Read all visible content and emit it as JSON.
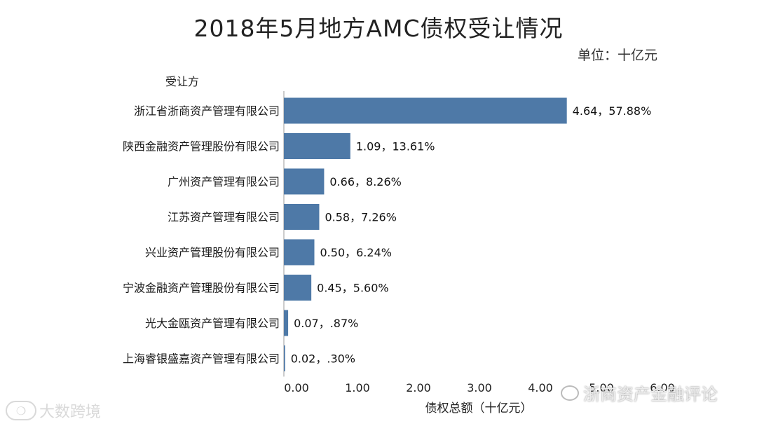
{
  "title": "2018年5月地方AMC债权受让情况",
  "unit_label": "单位：十亿元",
  "watermarks": {
    "left": "大数跨境",
    "right": "浙商资产金融评论"
  },
  "chart_data": {
    "type": "bar",
    "orientation": "horizontal",
    "title": "2018年5月地方AMC债权受让情况",
    "ylabel": "受让方",
    "xlabel": "债权总额（十亿元）",
    "categories": [
      "浙江省浙商资产管理有限公司",
      "陕西金融资产管理股份有限公司",
      "广州资产管理有限公司",
      "江苏资产管理有限公司",
      "兴业资产管理股份有限公司",
      "宁波金融资产管理股份有限公司",
      "光大金瓯资产管理有限公司",
      "上海睿银盛嘉资产管理有限公司"
    ],
    "values": [
      4.64,
      1.09,
      0.66,
      0.58,
      0.5,
      0.45,
      0.07,
      0.02
    ],
    "data_labels": [
      "4.64，57.88%",
      "1.09，13.61%",
      "0.66，8.26%",
      "0.58，7.26%",
      "0.50，6.24%",
      "0.45，5.60%",
      "0.07，.87%",
      "0.02，.30%"
    ],
    "xticks": [
      "0.00",
      "1.00",
      "2.00",
      "3.00",
      "4.00",
      "5.00",
      "6.00"
    ],
    "xlim": [
      0,
      6
    ],
    "bar_color": "#4e79a7",
    "grid": false
  }
}
